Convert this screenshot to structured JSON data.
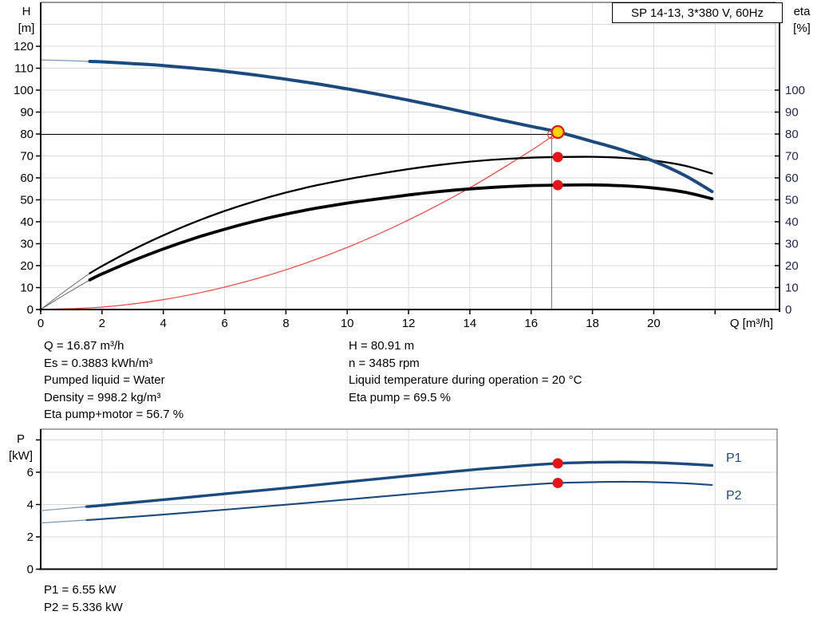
{
  "title_box": "SP 14-13, 3*380 V, 60Hz",
  "labels": {
    "h": "H",
    "h_unit": "[m]",
    "eta": "eta",
    "eta_unit": "[%]",
    "p": "P",
    "p_unit": "[kW]",
    "q_axis": "Q [m³/h]",
    "p1": "P1",
    "p2": "P2"
  },
  "colors": {
    "curve_blue": "#1b4a7e",
    "curve_thin_blue": "#7e96b0",
    "black": "#000000",
    "thin_gray": "#666666",
    "red": "#e61414",
    "red_line": "#ff3b3b",
    "yellow": "#ffd400",
    "grid": "#d9d9d9",
    "eta_label": "#1c2257"
  },
  "info_left": [
    "Q = 16.87 m³/h",
    "Es = 0.3883 kWh/m³",
    "Pumped liquid = Water",
    "Density = 998.2 kg/m³",
    "Eta pump+motor = 56.7 %"
  ],
  "info_right": [
    "H = 80.91 m",
    "n = 3485 rpm",
    "Liquid temperature during operation = 20 °C",
    "Eta pump = 69.5 %"
  ],
  "power_text": [
    "P1 = 6.55 kW",
    "P2 = 5.336 kW"
  ],
  "chart_data": [
    {
      "type": "line",
      "title": "SP 14-13, 3*380 V, 60Hz — head and efficiency vs flow",
      "x_axis": {
        "label": "Q [m³/h]",
        "min": 0,
        "max": 23.97,
        "tick_step": 2,
        "labeled_max": 20
      },
      "y_axis_left": {
        "label": "H [m]",
        "min": 0,
        "max": 140,
        "tick_step": 10,
        "labeled_max": 120
      },
      "y_axis_right": {
        "label": "eta [%]",
        "min": 0,
        "max": 140,
        "tick_step": 10,
        "labeled_max": 100
      },
      "grid": true,
      "series": [
        {
          "name": "H pump curve",
          "axis": "left",
          "thick_from": 1.6,
          "points": [
            [
              0,
              113.8
            ],
            [
              1,
              113.4
            ],
            [
              1.6,
              113.1
            ],
            [
              2,
              112.9
            ],
            [
              3,
              112.1
            ],
            [
              4,
              111.2
            ],
            [
              5,
              110.0
            ],
            [
              6,
              108.6
            ],
            [
              7,
              106.9
            ],
            [
              8,
              105.0
            ],
            [
              9,
              102.9
            ],
            [
              10,
              100.6
            ],
            [
              11,
              98.1
            ],
            [
              12,
              95.4
            ],
            [
              13,
              92.5
            ],
            [
              14,
              89.5
            ],
            [
              15,
              86.4
            ],
            [
              16,
              83.5
            ],
            [
              16.87,
              80.91
            ],
            [
              18,
              76.6
            ],
            [
              19,
              72.6
            ],
            [
              20,
              67.6
            ],
            [
              21,
              61.2
            ],
            [
              21.9,
              53.8
            ]
          ]
        },
        {
          "name": "eta pump",
          "axis": "right",
          "thick_from": 1.6,
          "points": [
            [
              0,
              0
            ],
            [
              0.8,
              8.5
            ],
            [
              1.6,
              16.5
            ],
            [
              2,
              19.8
            ],
            [
              3,
              27.2
            ],
            [
              4,
              33.8
            ],
            [
              5,
              39.7
            ],
            [
              6,
              44.9
            ],
            [
              7,
              49.4
            ],
            [
              8,
              53.3
            ],
            [
              9,
              56.6
            ],
            [
              10,
              59.4
            ],
            [
              11,
              61.8
            ],
            [
              12,
              64.0
            ],
            [
              13,
              65.9
            ],
            [
              14,
              67.4
            ],
            [
              15,
              68.5
            ],
            [
              16,
              69.2
            ],
            [
              16.87,
              69.5
            ],
            [
              18,
              69.6
            ],
            [
              19,
              69.1
            ],
            [
              20,
              67.9
            ],
            [
              21,
              65.6
            ],
            [
              21.9,
              62.0
            ]
          ]
        },
        {
          "name": "eta pump+motor",
          "axis": "right",
          "thick_from": 1.6,
          "points": [
            [
              0,
              0
            ],
            [
              0.8,
              6.9
            ],
            [
              1.6,
              13.5
            ],
            [
              2,
              16.2
            ],
            [
              3,
              22.2
            ],
            [
              4,
              27.6
            ],
            [
              5,
              32.4
            ],
            [
              6,
              36.6
            ],
            [
              7,
              40.3
            ],
            [
              8,
              43.5
            ],
            [
              9,
              46.2
            ],
            [
              10,
              48.5
            ],
            [
              11,
              50.4
            ],
            [
              12,
              52.2
            ],
            [
              13,
              53.8
            ],
            [
              14,
              55.0
            ],
            [
              15,
              55.9
            ],
            [
              16,
              56.5
            ],
            [
              16.87,
              56.7
            ],
            [
              18,
              56.8
            ],
            [
              19,
              56.4
            ],
            [
              20,
              55.4
            ],
            [
              21,
              53.5
            ],
            [
              21.9,
              50.5
            ]
          ]
        },
        {
          "name": "system curve",
          "axis": "left",
          "thick_from": null,
          "points": [
            [
              0,
              0
            ],
            [
              2,
              1.1
            ],
            [
              4,
              4.5
            ],
            [
              6,
              10.2
            ],
            [
              8,
              18.1
            ],
            [
              10,
              28.3
            ],
            [
              12,
              40.8
            ],
            [
              14,
              55.5
            ],
            [
              16,
              72.5
            ],
            [
              16.87,
              80.91
            ]
          ]
        }
      ],
      "markers": {
        "duty_point": {
          "q": 16.87,
          "v": 80.91
        },
        "requested_point": {
          "q": 16.67,
          "v": 79.8
        },
        "eta_pump_point": {
          "q": 16.87,
          "v": 69.5
        },
        "eta_pump_motor_point": {
          "q": 16.87,
          "v": 56.7
        }
      },
      "duty_lines": {
        "h": 79.8,
        "q": 16.67
      }
    },
    {
      "type": "line",
      "title": "Power vs flow",
      "x_axis": {
        "min": 0,
        "max": 24.03,
        "tick_step": 2,
        "labels_shown": false
      },
      "y_axis": {
        "label": "P [kW]",
        "min": 0,
        "max": 8.64,
        "tick_step": 2,
        "labeled_max": 6
      },
      "grid": true,
      "series": [
        {
          "name": "P1",
          "thick_from": 1.5,
          "points": [
            [
              0,
              3.62
            ],
            [
              1.5,
              3.87
            ],
            [
              2,
              3.95
            ],
            [
              4,
              4.3
            ],
            [
              6,
              4.66
            ],
            [
              8,
              5.02
            ],
            [
              10,
              5.4
            ],
            [
              12,
              5.78
            ],
            [
              14,
              6.14
            ],
            [
              16,
              6.44
            ],
            [
              16.87,
              6.55
            ],
            [
              18,
              6.61
            ],
            [
              19,
              6.63
            ],
            [
              20,
              6.6
            ],
            [
              21,
              6.52
            ],
            [
              21.9,
              6.42
            ]
          ]
        },
        {
          "name": "P2",
          "thick_from": 1.5,
          "points": [
            [
              0,
              2.86
            ],
            [
              1.5,
              3.04
            ],
            [
              2,
              3.1
            ],
            [
              4,
              3.38
            ],
            [
              6,
              3.68
            ],
            [
              8,
              3.99
            ],
            [
              10,
              4.31
            ],
            [
              12,
              4.64
            ],
            [
              14,
              4.96
            ],
            [
              16,
              5.24
            ],
            [
              16.87,
              5.336
            ],
            [
              18,
              5.39
            ],
            [
              19,
              5.41
            ],
            [
              20,
              5.39
            ],
            [
              21,
              5.32
            ],
            [
              21.9,
              5.21
            ]
          ]
        }
      ],
      "markers": [
        {
          "name": "P1 point",
          "q": 16.87,
          "v": 6.55
        },
        {
          "name": "P2 point",
          "q": 16.87,
          "v": 5.336
        }
      ]
    }
  ]
}
